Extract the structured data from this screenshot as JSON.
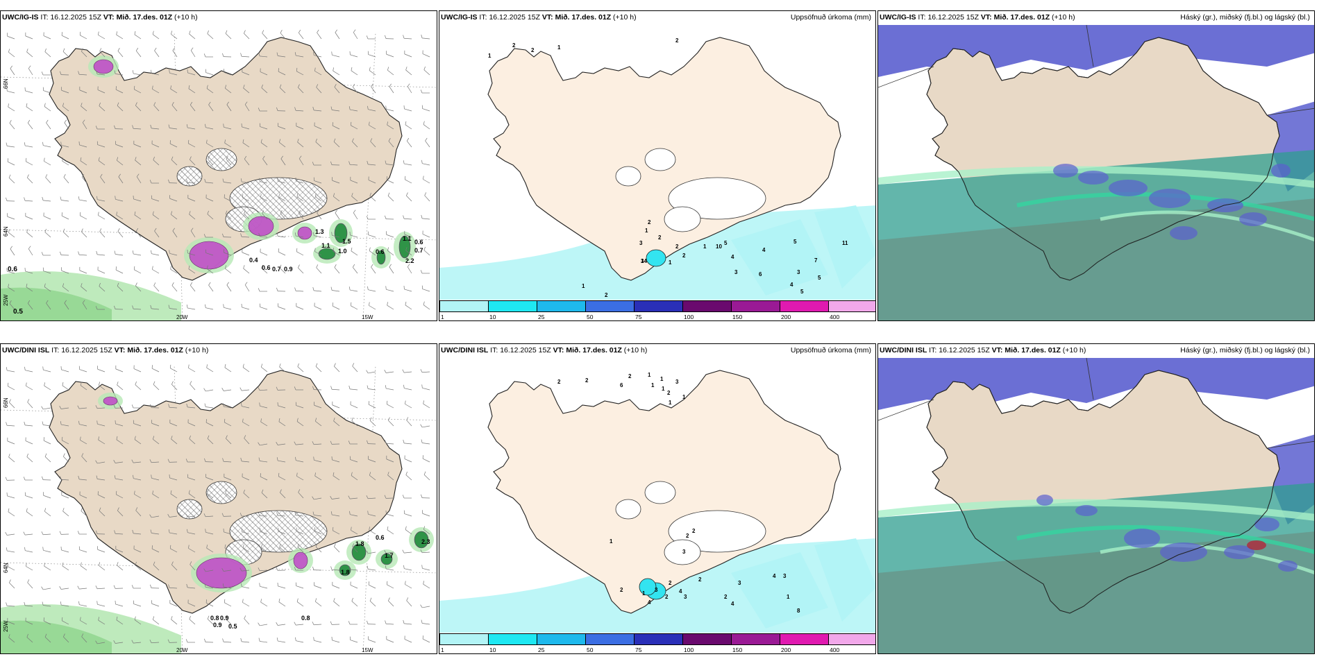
{
  "colors": {
    "land": "#e8d9c6",
    "land_light": "#fcefe1",
    "sea": "#ffffff",
    "precip_green": "#1f8a3a",
    "precip_lightgreen": "#b7e8b5",
    "precip_magenta": "#c050c8",
    "cloud_high": "#2f9e8f",
    "cloud_mid": "#5b5fcf",
    "cloud_low": "#6d7c6e",
    "accum_light": "#b2f4f6",
    "accum_cyan": "#33e4f0"
  },
  "legend": {
    "colors": [
      "#b2f4f6",
      "#1fe8f2",
      "#1eb9ec",
      "#3b6ee3",
      "#2a2fb8",
      "#6a0a6e",
      "#9a1a95",
      "#e01ab0",
      "#f2a8ea"
    ],
    "ticks": [
      "1",
      "10",
      "25",
      "50",
      "75",
      "100",
      "150",
      "200",
      "400"
    ]
  },
  "rows": [
    {
      "model": "UWC/IG-IS",
      "it_label": "IT:",
      "it": "16.12.2025 15Z",
      "vt_label": "VT:",
      "vt": "Mið. 17.des. 01Z",
      "lead": "(+10 h)",
      "axes": {
        "lat1": "66N",
        "lat2": "64N",
        "lonA": "25W",
        "lonB": "20W",
        "lonC": "15W"
      },
      "wind_labels": [
        "0.6",
        "0.5",
        "0.6",
        "0.7",
        "0.9",
        "0.4",
        "1.1",
        "1.0",
        "1.5",
        "0.6",
        "1.1",
        "2.2",
        "0.6",
        "0.7",
        "1.3"
      ],
      "accum_title": "Uppsöfnuð úrkoma (mm)",
      "accum_labels": [
        "1",
        "2",
        "2",
        "1",
        "2",
        "2",
        "1",
        "3",
        "2",
        "3",
        "2",
        "1",
        "2",
        "1",
        "4",
        "3",
        "5",
        "10",
        "4",
        "6",
        "5",
        "7",
        "3",
        "5",
        "4",
        "5",
        "9",
        "11",
        "2",
        "14",
        "1"
      ],
      "cloud_title": "Háský (gr.), miðský (fj.bl.) og lágský (bl.)"
    },
    {
      "model": "UWC/DINI ISL",
      "it_label": "IT:",
      "it": "16.12.2025 15Z",
      "vt_label": "VT:",
      "vt": "Mið. 17.des. 01Z",
      "lead": "(+10 h)",
      "axes": {
        "lat1": "66N",
        "lat2": "64N",
        "lonA": "25W",
        "lonB": "20W",
        "lonC": "15W"
      },
      "wind_labels": [
        "1.8",
        "0.6",
        "1.7",
        "1.8",
        "2.3",
        "0.8",
        "0.8",
        "0.9",
        "0.9",
        "0.5"
      ],
      "accum_title": "Uppsöfnuð úrkoma (mm)",
      "accum_labels": [
        "2",
        "2",
        "6",
        "2",
        "1",
        "1",
        "1",
        "1",
        "2",
        "3",
        "1",
        "1",
        "2",
        "2",
        "3",
        "1",
        "2",
        "4",
        "3",
        "2",
        "2",
        "4",
        "3",
        "2",
        "2",
        "4",
        "3",
        "4",
        "3",
        "1",
        "8",
        "1"
      ],
      "cloud_title": "Háský (gr.), miðský (fj.bl.) og lágský (bl.)"
    }
  ]
}
